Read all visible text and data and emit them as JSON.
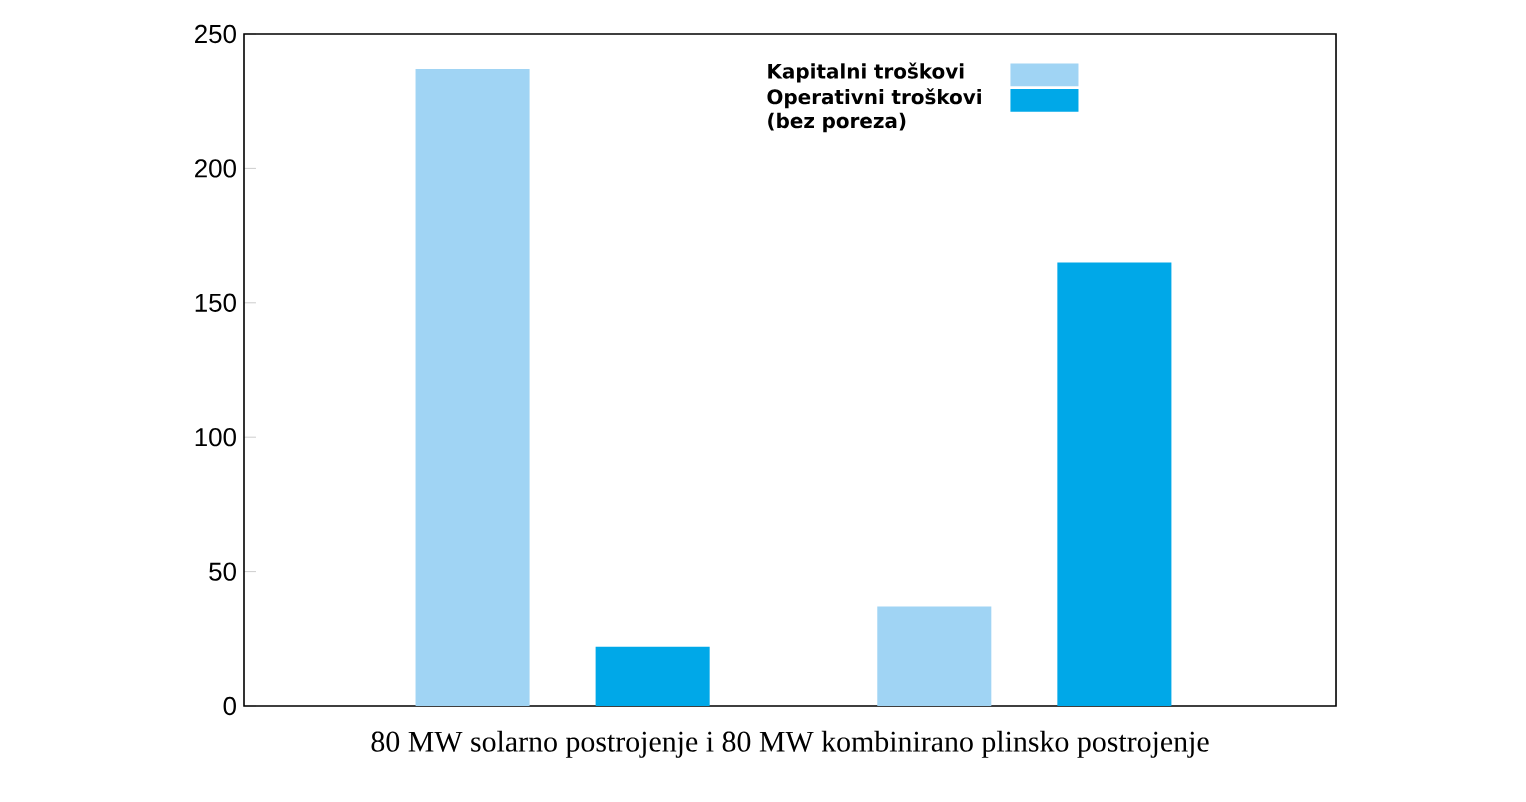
{
  "chart_data": {
    "type": "bar",
    "xlabel": "80 MW solarno postrojenje i 80 MW kombinirano plinsko postrojenje",
    "categories": [
      null,
      null
    ],
    "series": [
      {
        "name": "Kapitalni troškovi",
        "color": "#a0d4f4",
        "values": [
          237,
          37
        ]
      },
      {
        "name": "Operativni troškovi (bez poreza)",
        "color": "#00a8e8",
        "values": [
          22,
          165
        ]
      }
    ],
    "ylim": [
      0,
      250
    ],
    "yticks": [
      0,
      50,
      100,
      150,
      200,
      250
    ],
    "grid": false,
    "legend": "top right"
  }
}
